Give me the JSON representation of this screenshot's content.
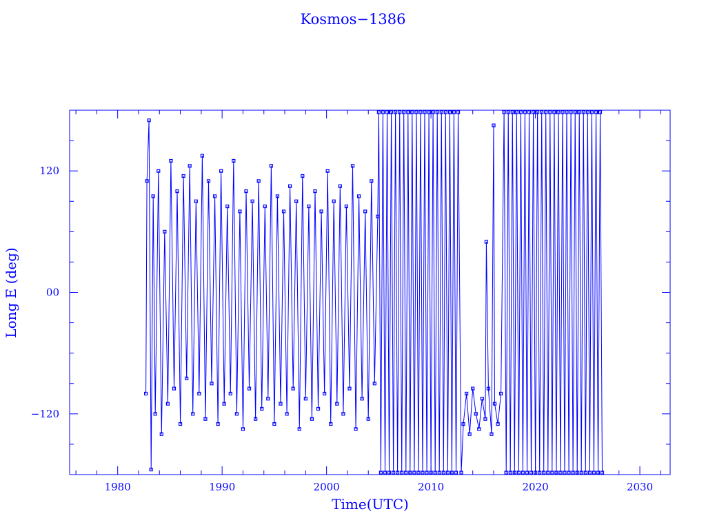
{
  "chart_data": {
    "type": "line",
    "title": "Kosmos−1386",
    "xlabel": "Time(UTC)",
    "ylabel": "Long E (deg)",
    "xlim": [
      1975.4,
      2032.9
    ],
    "ylim": [
      -180,
      180
    ],
    "xticks": [
      1980,
      1990,
      2000,
      2010,
      2020,
      2030
    ],
    "xtick_labels": [
      "1980",
      "1990",
      "2000",
      "2010",
      "2020",
      "2030"
    ],
    "yticks": [
      120,
      0,
      -120
    ],
    "ytick_labels": [
      "120",
      "00",
      "−120"
    ],
    "grid": false,
    "color": "#0000ff",
    "marker": "square",
    "points": [
      [
        1982.7,
        -100
      ],
      [
        1982.8,
        110
      ],
      [
        1983.0,
        170
      ],
      [
        1983.2,
        -175
      ],
      [
        1983.4,
        95
      ],
      [
        1983.6,
        -120
      ],
      [
        1983.9,
        120
      ],
      [
        1984.2,
        -140
      ],
      [
        1984.5,
        60
      ],
      [
        1984.8,
        -110
      ],
      [
        1985.1,
        130
      ],
      [
        1985.4,
        -95
      ],
      [
        1985.7,
        100
      ],
      [
        1986.0,
        -130
      ],
      [
        1986.3,
        115
      ],
      [
        1986.6,
        -85
      ],
      [
        1986.9,
        125
      ],
      [
        1987.2,
        -120
      ],
      [
        1987.5,
        90
      ],
      [
        1987.8,
        -100
      ],
      [
        1988.1,
        135
      ],
      [
        1988.4,
        -125
      ],
      [
        1988.7,
        110
      ],
      [
        1989.0,
        -90
      ],
      [
        1989.3,
        95
      ],
      [
        1989.6,
        -130
      ],
      [
        1989.9,
        120
      ],
      [
        1990.2,
        -110
      ],
      [
        1990.5,
        85
      ],
      [
        1990.8,
        -100
      ],
      [
        1991.1,
        130
      ],
      [
        1991.4,
        -120
      ],
      [
        1991.7,
        80
      ],
      [
        1992.0,
        -135
      ],
      [
        1992.3,
        100
      ],
      [
        1992.6,
        -95
      ],
      [
        1992.9,
        90
      ],
      [
        1993.2,
        -125
      ],
      [
        1993.5,
        110
      ],
      [
        1993.8,
        -115
      ],
      [
        1994.1,
        85
      ],
      [
        1994.4,
        -105
      ],
      [
        1994.7,
        125
      ],
      [
        1995.0,
        -130
      ],
      [
        1995.3,
        95
      ],
      [
        1995.6,
        -110
      ],
      [
        1995.9,
        80
      ],
      [
        1996.2,
        -120
      ],
      [
        1996.5,
        105
      ],
      [
        1996.8,
        -95
      ],
      [
        1997.1,
        90
      ],
      [
        1997.4,
        -135
      ],
      [
        1997.7,
        115
      ],
      [
        1998.0,
        -105
      ],
      [
        1998.3,
        85
      ],
      [
        1998.6,
        -125
      ],
      [
        1998.9,
        100
      ],
      [
        1999.2,
        -115
      ],
      [
        1999.5,
        80
      ],
      [
        1999.8,
        -100
      ],
      [
        2000.1,
        120
      ],
      [
        2000.4,
        -130
      ],
      [
        2000.7,
        90
      ],
      [
        2001.0,
        -110
      ],
      [
        2001.3,
        105
      ],
      [
        2001.6,
        -120
      ],
      [
        2001.9,
        85
      ],
      [
        2002.2,
        -95
      ],
      [
        2002.5,
        125
      ],
      [
        2002.8,
        -135
      ],
      [
        2003.1,
        95
      ],
      [
        2003.4,
        -105
      ],
      [
        2003.7,
        80
      ],
      [
        2004.0,
        -125
      ],
      [
        2004.3,
        110
      ],
      [
        2004.6,
        -90
      ],
      [
        2004.9,
        75
      ],
      [
        2005.0,
        178
      ],
      [
        2005.2,
        -178
      ],
      [
        2005.4,
        178
      ],
      [
        2005.6,
        -178
      ],
      [
        2005.8,
        178
      ],
      [
        2006.0,
        -178
      ],
      [
        2006.2,
        178
      ],
      [
        2006.4,
        -178
      ],
      [
        2006.6,
        178
      ],
      [
        2006.8,
        -178
      ],
      [
        2007.0,
        178
      ],
      [
        2007.2,
        -178
      ],
      [
        2007.4,
        178
      ],
      [
        2007.6,
        -178
      ],
      [
        2007.8,
        178
      ],
      [
        2008.0,
        -178
      ],
      [
        2008.2,
        178
      ],
      [
        2008.4,
        -178
      ],
      [
        2008.6,
        178
      ],
      [
        2008.8,
        -178
      ],
      [
        2009.0,
        178
      ],
      [
        2009.2,
        -178
      ],
      [
        2009.4,
        178
      ],
      [
        2009.6,
        -178
      ],
      [
        2009.8,
        178
      ],
      [
        2010.0,
        -178
      ],
      [
        2010.2,
        178
      ],
      [
        2010.4,
        -178
      ],
      [
        2010.6,
        178
      ],
      [
        2010.8,
        -178
      ],
      [
        2011.0,
        178
      ],
      [
        2011.2,
        -178
      ],
      [
        2011.4,
        178
      ],
      [
        2011.6,
        -178
      ],
      [
        2011.8,
        178
      ],
      [
        2012.0,
        -178
      ],
      [
        2012.2,
        178
      ],
      [
        2012.4,
        -178
      ],
      [
        2012.6,
        178
      ],
      [
        2012.9,
        -178
      ],
      [
        2013.1,
        -130
      ],
      [
        2013.4,
        -100
      ],
      [
        2013.7,
        -140
      ],
      [
        2014.0,
        -95
      ],
      [
        2014.3,
        -120
      ],
      [
        2014.6,
        -135
      ],
      [
        2014.9,
        -105
      ],
      [
        2015.2,
        -125
      ],
      [
        2015.3,
        50
      ],
      [
        2015.5,
        -95
      ],
      [
        2015.8,
        -140
      ],
      [
        2016.0,
        165
      ],
      [
        2016.1,
        -110
      ],
      [
        2016.4,
        -130
      ],
      [
        2016.7,
        -100
      ],
      [
        2017.0,
        178
      ],
      [
        2017.2,
        -178
      ],
      [
        2017.4,
        178
      ],
      [
        2017.6,
        -178
      ],
      [
        2017.8,
        178
      ],
      [
        2018.0,
        -178
      ],
      [
        2018.2,
        178
      ],
      [
        2018.4,
        -178
      ],
      [
        2018.6,
        178
      ],
      [
        2018.8,
        -178
      ],
      [
        2019.0,
        178
      ],
      [
        2019.2,
        -178
      ],
      [
        2019.4,
        178
      ],
      [
        2019.6,
        -178
      ],
      [
        2019.8,
        178
      ],
      [
        2020.0,
        -178
      ],
      [
        2020.2,
        178
      ],
      [
        2020.4,
        -178
      ],
      [
        2020.6,
        178
      ],
      [
        2020.8,
        -178
      ],
      [
        2021.0,
        178
      ],
      [
        2021.2,
        -178
      ],
      [
        2021.4,
        178
      ],
      [
        2021.6,
        -178
      ],
      [
        2021.8,
        178
      ],
      [
        2022.0,
        -178
      ],
      [
        2022.2,
        178
      ],
      [
        2022.4,
        -178
      ],
      [
        2022.6,
        178
      ],
      [
        2022.8,
        -178
      ],
      [
        2023.0,
        178
      ],
      [
        2023.2,
        -178
      ],
      [
        2023.4,
        178
      ],
      [
        2023.6,
        -178
      ],
      [
        2023.8,
        178
      ],
      [
        2024.0,
        -178
      ],
      [
        2024.2,
        178
      ],
      [
        2024.4,
        -178
      ],
      [
        2024.6,
        178
      ],
      [
        2024.8,
        -178
      ],
      [
        2025.0,
        178
      ],
      [
        2025.2,
        -178
      ],
      [
        2025.4,
        178
      ],
      [
        2025.6,
        -178
      ],
      [
        2025.8,
        178
      ],
      [
        2026.0,
        -178
      ],
      [
        2026.2,
        178
      ],
      [
        2026.4,
        -178
      ]
    ]
  }
}
